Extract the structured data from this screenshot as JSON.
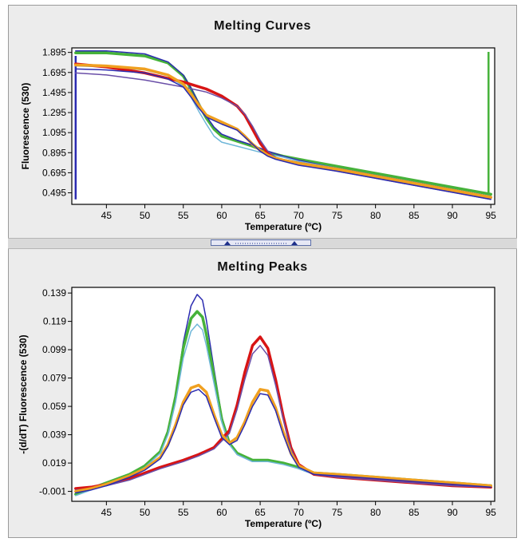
{
  "colors": {
    "blue": "#2b2bb0",
    "green": "#46b23a",
    "red": "#d81414",
    "orange": "#f0a020",
    "cyan": "#6fb7d9",
    "purple": "#6a4fa8",
    "vline_blue": "#2b2bb0",
    "vline_green": "#46b23a"
  },
  "chart_data": [
    {
      "type": "line",
      "title": "Melting Curves",
      "xlabel": "Temperature (ºC)",
      "ylabel": "Fluorescence (530)",
      "xlim": [
        40.5,
        95.5
      ],
      "ylim": [
        0.38,
        1.94
      ],
      "xticks": [
        45,
        50,
        55,
        60,
        65,
        70,
        75,
        80,
        85,
        90,
        95
      ],
      "yticks": [
        "0.495",
        "0.695",
        "0.895",
        "1.095",
        "1.295",
        "1.495",
        "1.695",
        "1.895"
      ],
      "series": [
        {
          "color": "green",
          "width": 3.5,
          "x": [
            41,
            45,
            50,
            53,
            55,
            56,
            57,
            58,
            59,
            60,
            62,
            64,
            66,
            68,
            70,
            75,
            80,
            85,
            90,
            95
          ],
          "y": [
            1.89,
            1.89,
            1.86,
            1.79,
            1.66,
            1.53,
            1.38,
            1.24,
            1.13,
            1.06,
            1.01,
            0.96,
            0.9,
            0.86,
            0.83,
            0.76,
            0.69,
            0.62,
            0.55,
            0.48
          ]
        },
        {
          "color": "blue",
          "width": 1.5,
          "x": [
            41,
            45,
            50,
            53,
            55,
            56,
            57,
            58,
            59,
            60,
            62,
            64,
            66,
            68,
            70,
            75,
            80,
            85,
            90,
            95
          ],
          "y": [
            1.91,
            1.91,
            1.88,
            1.8,
            1.67,
            1.54,
            1.39,
            1.26,
            1.15,
            1.08,
            1.02,
            0.97,
            0.91,
            0.86,
            0.82,
            0.74,
            0.67,
            0.6,
            0.53,
            0.45
          ]
        },
        {
          "color": "cyan",
          "width": 1.5,
          "x": [
            41,
            45,
            50,
            53,
            55,
            56,
            57,
            58,
            59,
            60,
            62,
            64,
            66,
            68,
            70,
            75,
            80,
            85,
            90,
            95
          ],
          "y": [
            1.76,
            1.75,
            1.72,
            1.66,
            1.56,
            1.45,
            1.31,
            1.18,
            1.06,
            1.0,
            0.96,
            0.92,
            0.88,
            0.85,
            0.81,
            0.74,
            0.67,
            0.6,
            0.53,
            0.46
          ]
        },
        {
          "color": "red",
          "width": 3.5,
          "x": [
            41,
            45,
            50,
            55,
            58,
            60,
            62,
            63,
            64,
            65,
            66,
            67,
            68,
            70,
            75,
            80,
            85,
            90,
            95
          ],
          "y": [
            1.78,
            1.75,
            1.69,
            1.6,
            1.53,
            1.46,
            1.36,
            1.27,
            1.13,
            0.99,
            0.89,
            0.84,
            0.82,
            0.79,
            0.73,
            0.66,
            0.59,
            0.52,
            0.45
          ]
        },
        {
          "color": "purple",
          "width": 1.5,
          "x": [
            41,
            45,
            50,
            55,
            58,
            60,
            62,
            63,
            64,
            65,
            66,
            67,
            68,
            70,
            75,
            80,
            85,
            90,
            95
          ],
          "y": [
            1.69,
            1.67,
            1.62,
            1.55,
            1.5,
            1.44,
            1.36,
            1.28,
            1.16,
            1.02,
            0.91,
            0.85,
            0.82,
            0.78,
            0.71,
            0.64,
            0.57,
            0.5,
            0.43
          ]
        },
        {
          "color": "orange",
          "width": 3.5,
          "x": [
            41,
            45,
            50,
            53,
            55,
            56,
            57,
            58,
            60,
            62,
            63,
            64,
            65,
            66,
            67,
            68,
            70,
            75,
            80,
            85,
            90,
            95
          ],
          "y": [
            1.77,
            1.76,
            1.73,
            1.67,
            1.58,
            1.48,
            1.37,
            1.27,
            1.2,
            1.13,
            1.06,
            0.98,
            0.92,
            0.87,
            0.84,
            0.82,
            0.79,
            0.73,
            0.66,
            0.59,
            0.52,
            0.45
          ]
        },
        {
          "color": "blue",
          "width": 1.5,
          "x": [
            41,
            45,
            50,
            53,
            55,
            56,
            57,
            58,
            60,
            62,
            63,
            64,
            65,
            66,
            67,
            68,
            70,
            75,
            80,
            85,
            90,
            95
          ],
          "y": [
            1.73,
            1.72,
            1.69,
            1.63,
            1.55,
            1.45,
            1.34,
            1.25,
            1.18,
            1.12,
            1.05,
            0.98,
            0.91,
            0.86,
            0.83,
            0.81,
            0.77,
            0.71,
            0.64,
            0.57,
            0.5,
            0.43
          ]
        }
      ],
      "vlines": [
        {
          "color": "vline_blue",
          "x": 41.0,
          "y": [
            0.43,
            1.86
          ]
        },
        {
          "color": "vline_green",
          "x": 94.7,
          "y": [
            0.49,
            1.9
          ]
        }
      ]
    },
    {
      "type": "line",
      "title": "Melting Peaks",
      "xlabel": "Temperature (ºC)",
      "ylabel": "-(d/dT) Fluorescence (530)",
      "xlim": [
        40.5,
        95.5
      ],
      "ylim": [
        -0.008,
        0.143
      ],
      "xticks": [
        45,
        50,
        55,
        60,
        65,
        70,
        75,
        80,
        85,
        90,
        95
      ],
      "yticks": [
        "-0.001",
        "0.019",
        "0.039",
        "0.059",
        "0.079",
        "0.099",
        "0.119",
        "0.139"
      ],
      "series": [
        {
          "color": "blue",
          "width": 1.5,
          "x": [
            41,
            43,
            45,
            48,
            50,
            52,
            53,
            54,
            55,
            56,
            56.8,
            57.5,
            58,
            59,
            60,
            61,
            62,
            64,
            66,
            68,
            70,
            72,
            75,
            80,
            85,
            90,
            95
          ],
          "y": [
            -0.003,
            0.0,
            0.004,
            0.01,
            0.016,
            0.026,
            0.04,
            0.067,
            0.104,
            0.13,
            0.138,
            0.134,
            0.12,
            0.085,
            0.052,
            0.033,
            0.025,
            0.02,
            0.021,
            0.019,
            0.015,
            0.011,
            0.01,
            0.008,
            0.006,
            0.004,
            0.002
          ]
        },
        {
          "color": "green",
          "width": 3.5,
          "x": [
            41,
            43,
            45,
            48,
            50,
            52,
            53,
            54,
            55,
            56,
            56.8,
            57.5,
            58,
            59,
            60,
            61,
            62,
            64,
            66,
            68,
            70,
            72,
            75,
            80,
            85,
            90,
            95
          ],
          "y": [
            -0.003,
            0.001,
            0.005,
            0.011,
            0.017,
            0.027,
            0.041,
            0.066,
            0.1,
            0.121,
            0.126,
            0.122,
            0.11,
            0.08,
            0.05,
            0.033,
            0.026,
            0.021,
            0.021,
            0.019,
            0.016,
            0.012,
            0.011,
            0.009,
            0.007,
            0.005,
            0.003
          ]
        },
        {
          "color": "cyan",
          "width": 1.5,
          "x": [
            41,
            43,
            45,
            48,
            50,
            52,
            53,
            54,
            55,
            56,
            56.8,
            57.5,
            58,
            59,
            60,
            61,
            62,
            64,
            66,
            68,
            70,
            72,
            75,
            80,
            85,
            90,
            95
          ],
          "y": [
            -0.004,
            0.0,
            0.004,
            0.01,
            0.016,
            0.026,
            0.039,
            0.062,
            0.093,
            0.112,
            0.117,
            0.113,
            0.102,
            0.075,
            0.048,
            0.032,
            0.025,
            0.02,
            0.02,
            0.018,
            0.015,
            0.011,
            0.01,
            0.008,
            0.006,
            0.004,
            0.002
          ]
        },
        {
          "color": "red",
          "width": 3.5,
          "x": [
            41,
            43,
            45,
            48,
            50,
            52,
            55,
            57,
            59,
            61,
            62,
            63,
            64,
            65,
            66,
            67,
            68,
            69,
            70,
            72,
            75,
            80,
            85,
            90,
            95
          ],
          "y": [
            0.001,
            0.002,
            0.004,
            0.008,
            0.012,
            0.016,
            0.021,
            0.025,
            0.03,
            0.042,
            0.06,
            0.083,
            0.102,
            0.108,
            0.1,
            0.078,
            0.052,
            0.03,
            0.018,
            0.011,
            0.009,
            0.007,
            0.005,
            0.003,
            0.002
          ]
        },
        {
          "color": "purple",
          "width": 1.5,
          "x": [
            41,
            43,
            45,
            48,
            50,
            52,
            55,
            57,
            59,
            61,
            62,
            63,
            64,
            65,
            66,
            67,
            68,
            69,
            70,
            72,
            75,
            80,
            85,
            90,
            95
          ],
          "y": [
            0.0,
            0.001,
            0.003,
            0.007,
            0.011,
            0.015,
            0.02,
            0.024,
            0.029,
            0.04,
            0.057,
            0.078,
            0.096,
            0.102,
            0.095,
            0.074,
            0.05,
            0.029,
            0.017,
            0.011,
            0.009,
            0.007,
            0.005,
            0.003,
            0.002
          ]
        },
        {
          "color": "orange",
          "width": 3.5,
          "x": [
            41,
            43,
            45,
            48,
            50,
            52,
            53,
            54,
            55,
            56,
            57,
            58,
            59,
            60,
            61,
            62,
            63,
            64,
            65,
            66,
            67,
            68,
            69,
            70,
            72,
            75,
            80,
            85,
            90,
            95
          ],
          "y": [
            -0.001,
            0.001,
            0.004,
            0.01,
            0.015,
            0.023,
            0.032,
            0.046,
            0.062,
            0.072,
            0.074,
            0.069,
            0.053,
            0.039,
            0.033,
            0.037,
            0.048,
            0.062,
            0.071,
            0.07,
            0.058,
            0.041,
            0.026,
            0.017,
            0.012,
            0.011,
            0.009,
            0.007,
            0.005,
            0.003
          ]
        },
        {
          "color": "blue",
          "width": 1.5,
          "x": [
            41,
            43,
            45,
            48,
            50,
            52,
            53,
            54,
            55,
            56,
            57,
            58,
            59,
            60,
            61,
            62,
            63,
            64,
            65,
            66,
            67,
            68,
            69,
            70,
            72,
            75,
            80,
            85,
            90,
            95
          ],
          "y": [
            -0.002,
            0.0,
            0.003,
            0.009,
            0.014,
            0.022,
            0.031,
            0.044,
            0.06,
            0.069,
            0.071,
            0.066,
            0.051,
            0.037,
            0.032,
            0.035,
            0.046,
            0.059,
            0.068,
            0.067,
            0.056,
            0.039,
            0.025,
            0.016,
            0.011,
            0.01,
            0.008,
            0.006,
            0.004,
            0.002
          ]
        }
      ],
      "vlines": []
    }
  ]
}
